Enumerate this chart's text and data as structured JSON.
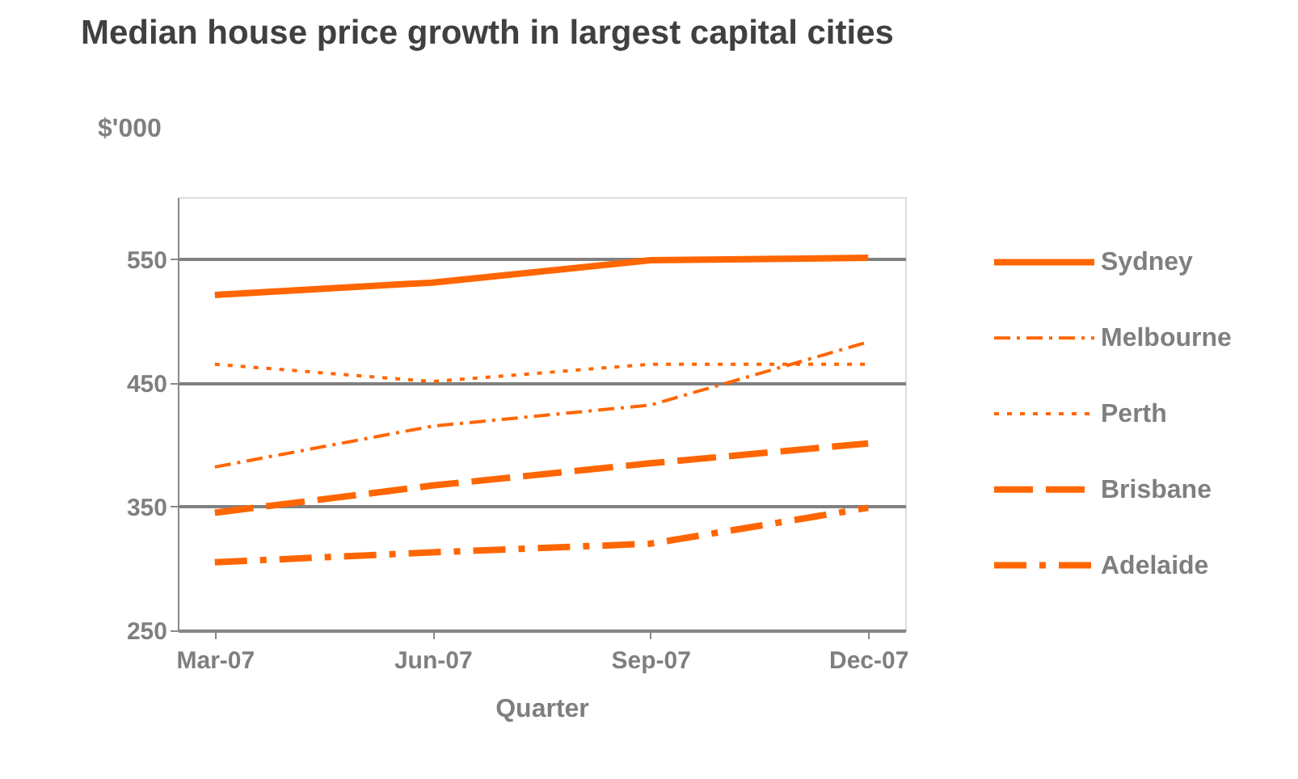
{
  "chart_data": {
    "type": "line",
    "title": "Median house price growth in largest  capital cities",
    "xlabel": "Quarter",
    "ylabel": "$'000",
    "categories": [
      "Mar-07",
      "Jun-07",
      "Sep-07",
      "Dec-07"
    ],
    "series": [
      {
        "name": "Sydney",
        "color": "#ff6600",
        "line_style": "solid",
        "values": [
          521,
          531,
          549,
          551
        ]
      },
      {
        "name": "Melbourne",
        "color": "#ff6600",
        "line_style": "dashdot",
        "values": [
          382,
          415,
          432,
          483
        ]
      },
      {
        "name": "Perth",
        "color": "#ff6600",
        "line_style": "dotted",
        "values": [
          465,
          451,
          465,
          465
        ]
      },
      {
        "name": "Brisbane",
        "color": "#ff6600",
        "line_style": "dashed",
        "values": [
          345,
          367,
          385,
          401
        ]
      },
      {
        "name": "Adelaide",
        "color": "#ff6600",
        "line_style": "dashdot",
        "values": [
          305,
          313,
          320,
          349
        ]
      }
    ],
    "ylim": [
      250,
      600
    ],
    "yticks": [
      250,
      350,
      450,
      550
    ],
    "grid": "y",
    "legend": "right",
    "marker": "none"
  }
}
